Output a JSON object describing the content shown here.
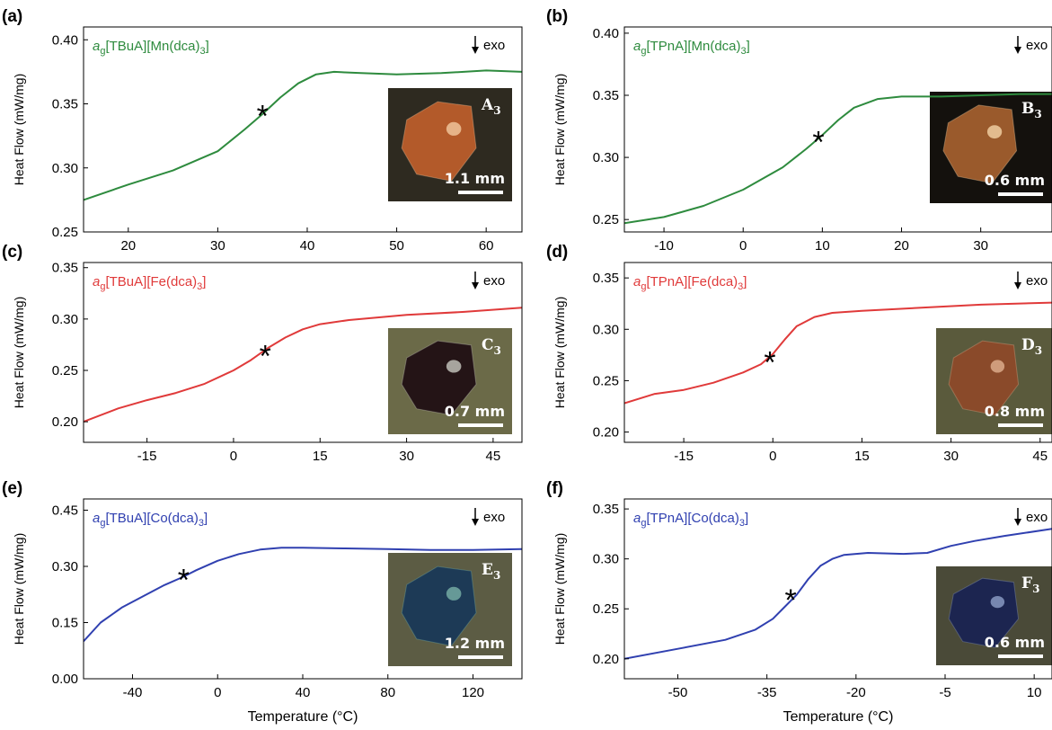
{
  "chart_data": [
    {
      "type": "line",
      "panel": "(a)",
      "series_label": {
        "prefix": "a",
        "sub": "g",
        "main": "[TBuA][Mn(dca)",
        "sub2": "3",
        "end": "]"
      },
      "color": "#2e8b3e",
      "xlim": [
        15,
        64
      ],
      "ylim": [
        0.25,
        0.41
      ],
      "xticks": [
        20,
        30,
        40,
        50,
        60
      ],
      "xtick_labels": [
        "20",
        "30",
        "40",
        "50",
        "60"
      ],
      "yticks": [
        0.25,
        0.3,
        0.35,
        0.4
      ],
      "ytick_labels": [
        "0.25",
        "0.30",
        "0.35",
        "0.40"
      ],
      "x": [
        15,
        20,
        25,
        30,
        33,
        35,
        37,
        39,
        41,
        43,
        46,
        50,
        55,
        60,
        64
      ],
      "y": [
        0.275,
        0.287,
        0.298,
        0.313,
        0.33,
        0.342,
        0.355,
        0.366,
        0.373,
        0.375,
        0.374,
        0.373,
        0.374,
        0.376,
        0.375
      ],
      "marker": {
        "x": 35,
        "y": 0.343,
        "symbol": "*"
      },
      "ylabel": "Heat Flow (mW/mg)",
      "xlabel": "",
      "annotation": "exo",
      "inset": {
        "label": "A",
        "label_sub": "3",
        "scale": "1.1 mm",
        "tone": "amber"
      }
    },
    {
      "type": "line",
      "panel": "(b)",
      "series_label": {
        "prefix": "a",
        "sub": "g",
        "main": "[TPnA][Mn(dca)",
        "sub2": "3",
        "end": "]"
      },
      "color": "#2e8b3e",
      "xlim": [
        -15,
        39
      ],
      "ylim": [
        0.24,
        0.405
      ],
      "xticks": [
        -10,
        0,
        10,
        20,
        30
      ],
      "xtick_labels": [
        "-10",
        "0",
        "10",
        "20",
        "30"
      ],
      "yticks": [
        0.25,
        0.3,
        0.35,
        0.4
      ],
      "ytick_labels": [
        "0.25",
        "0.30",
        "0.35",
        "0.40"
      ],
      "x": [
        -15,
        -10,
        -5,
        0,
        5,
        8,
        10,
        12,
        14,
        17,
        20,
        25,
        30,
        35,
        39
      ],
      "y": [
        0.247,
        0.252,
        0.261,
        0.274,
        0.292,
        0.307,
        0.318,
        0.33,
        0.34,
        0.347,
        0.349,
        0.349,
        0.35,
        0.351,
        0.351
      ],
      "marker": {
        "x": 9.5,
        "y": 0.315,
        "symbol": "*"
      },
      "ylabel": "Heat Flow (mW/mg)",
      "xlabel": "",
      "annotation": "exo",
      "inset": {
        "label": "B",
        "label_sub": "3",
        "scale": "0.6 mm",
        "tone": "dark-amber"
      }
    },
    {
      "type": "line",
      "panel": "(c)",
      "series_label": {
        "prefix": "a",
        "sub": "g",
        "main": "[TBuA][Fe(dca)",
        "sub2": "3",
        "end": "]"
      },
      "color": "#e03a3a",
      "xlim": [
        -26,
        50
      ],
      "ylim": [
        0.18,
        0.355
      ],
      "xticks": [
        -15,
        0,
        15,
        30,
        45
      ],
      "xtick_labels": [
        "-15",
        "0",
        "15",
        "30",
        "45"
      ],
      "yticks": [
        0.2,
        0.25,
        0.3,
        0.35
      ],
      "ytick_labels": [
        "0.20",
        "0.25",
        "0.30",
        "0.35"
      ],
      "x": [
        -26,
        -20,
        -15,
        -10,
        -5,
        0,
        3,
        6,
        9,
        12,
        15,
        20,
        30,
        40,
        50
      ],
      "y": [
        0.2,
        0.213,
        0.221,
        0.228,
        0.237,
        0.25,
        0.26,
        0.272,
        0.282,
        0.29,
        0.295,
        0.299,
        0.304,
        0.307,
        0.311
      ],
      "marker": {
        "x": 5.5,
        "y": 0.267,
        "symbol": "*"
      },
      "ylabel": "Heat Flow (mW/mg)",
      "xlabel": "",
      "annotation": "exo",
      "inset": {
        "label": "C",
        "label_sub": "3",
        "scale": "0.7 mm",
        "tone": "dark-red"
      }
    },
    {
      "type": "line",
      "panel": "(d)",
      "series_label": {
        "prefix": "a",
        "sub": "g",
        "main": "[TPnA][Fe(dca)",
        "sub2": "3",
        "end": "]"
      },
      "color": "#e03a3a",
      "xlim": [
        -25,
        47
      ],
      "ylim": [
        0.19,
        0.365
      ],
      "xticks": [
        -15,
        0,
        15,
        30,
        45
      ],
      "xtick_labels": [
        "-15",
        "0",
        "15",
        "30",
        "45"
      ],
      "yticks": [
        0.2,
        0.25,
        0.3,
        0.35
      ],
      "ytick_labels": [
        "0.20",
        "0.25",
        "0.30",
        "0.35"
      ],
      "x": [
        -25,
        -20,
        -15,
        -10,
        -5,
        -2,
        0,
        2,
        4,
        7,
        10,
        15,
        25,
        35,
        47
      ],
      "y": [
        0.228,
        0.237,
        0.241,
        0.248,
        0.258,
        0.266,
        0.276,
        0.29,
        0.303,
        0.312,
        0.316,
        0.318,
        0.321,
        0.324,
        0.326
      ],
      "marker": {
        "x": -0.5,
        "y": 0.271,
        "symbol": "*"
      },
      "ylabel": "Heat Flow (mW/mg)",
      "xlabel": "",
      "annotation": "exo",
      "inset": {
        "label": "D",
        "label_sub": "3",
        "scale": "0.8 mm",
        "tone": "brown"
      }
    },
    {
      "type": "line",
      "panel": "(e)",
      "series_label": {
        "prefix": "a",
        "sub": "g",
        "main": "[TBuA][Co(dca)",
        "sub2": "3",
        "end": "]"
      },
      "color": "#3040b0",
      "xlim": [
        -63,
        143
      ],
      "ylim": [
        0.0,
        0.48
      ],
      "xticks": [
        -40,
        0,
        40,
        80,
        120
      ],
      "xtick_labels": [
        "-40",
        "0",
        "40",
        "80",
        "120"
      ],
      "yticks": [
        0.0,
        0.15,
        0.3,
        0.45
      ],
      "ytick_labels": [
        "0.00",
        "0.15",
        "0.30",
        "0.45"
      ],
      "x": [
        -63,
        -55,
        -45,
        -35,
        -25,
        -17,
        -10,
        0,
        10,
        20,
        30,
        40,
        60,
        80,
        100,
        120,
        143
      ],
      "y": [
        0.1,
        0.15,
        0.19,
        0.22,
        0.25,
        0.27,
        0.29,
        0.315,
        0.333,
        0.345,
        0.35,
        0.35,
        0.348,
        0.346,
        0.344,
        0.344,
        0.346
      ],
      "marker": {
        "x": -16,
        "y": 0.272,
        "symbol": "*"
      },
      "ylabel": "Heat Flow (mW/mg)",
      "xlabel": "Temperature (°C)",
      "annotation": "exo",
      "inset": {
        "label": "E",
        "label_sub": "3",
        "scale": "1.2 mm",
        "tone": "blue"
      }
    },
    {
      "type": "line",
      "panel": "(f)",
      "series_label": {
        "prefix": "a",
        "sub": "g",
        "main": "[TPnA][Co(dca)",
        "sub2": "3",
        "end": "]"
      },
      "color": "#3040b0",
      "xlim": [
        -59,
        13
      ],
      "ylim": [
        0.18,
        0.36
      ],
      "xticks": [
        -50,
        -35,
        -20,
        -5,
        10
      ],
      "xtick_labels": [
        "-50",
        "-35",
        "-20",
        "-5",
        "10"
      ],
      "yticks": [
        0.2,
        0.25,
        0.3,
        0.35
      ],
      "ytick_labels": [
        "0.20",
        "0.25",
        "0.30",
        "0.35"
      ],
      "x": [
        -59,
        -50,
        -42,
        -37,
        -34,
        -32,
        -30,
        -28,
        -26,
        -24,
        -22,
        -18,
        -12,
        -8,
        -4,
        0,
        5,
        13
      ],
      "y": [
        0.2,
        0.21,
        0.219,
        0.229,
        0.24,
        0.252,
        0.264,
        0.28,
        0.293,
        0.3,
        0.304,
        0.306,
        0.305,
        0.306,
        0.313,
        0.318,
        0.323,
        0.33
      ],
      "marker": {
        "x": -31,
        "y": 0.262,
        "symbol": "*"
      },
      "ylabel": "Heat Flow (mW/mg)",
      "xlabel": "Temperature (°C)",
      "annotation": "exo",
      "inset": {
        "label": "F",
        "label_sub": "3",
        "scale": "0.6 mm",
        "tone": "dark-blue"
      }
    }
  ]
}
